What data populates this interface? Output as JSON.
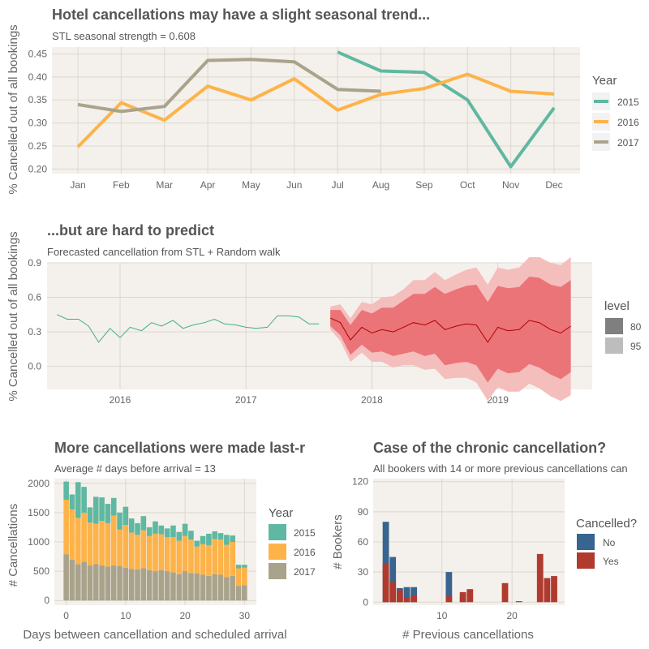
{
  "colors": {
    "panel": "#f4f0eb",
    "grid": "#dcd7d0",
    "y2015": "#5fb8a1",
    "y2016": "#fdb349",
    "y2017": "#a9a38b",
    "forecast_line": "#b00000",
    "band80": "#eb7478",
    "band95": "#f4bebd",
    "history_line": "#3fb27f",
    "no": "#386490",
    "yes": "#b03a2e",
    "legend_level80": "#7f7f7f",
    "legend_level95": "#bdbdbd"
  },
  "chart_data": [
    {
      "type": "line",
      "title": "Hotel cancellations may have a slight seasonal trend...",
      "subtitle": "STL seasonal strength = 0.608",
      "ylabel": "% Cancelled out of all bookings",
      "ylim": [
        0.19,
        0.465
      ],
      "yticks": [
        0.2,
        0.25,
        0.3,
        0.35,
        0.4,
        0.45
      ],
      "ytick_labels": [
        "0.20",
        "0.25",
        "0.30",
        "0.35",
        "0.40",
        "0.45"
      ],
      "categories": [
        "Jan",
        "Feb",
        "Mar",
        "Apr",
        "May",
        "Jun",
        "Jul",
        "Aug",
        "Sep",
        "Oct",
        "Nov",
        "Dec"
      ],
      "legend_title": "Year",
      "series": [
        {
          "name": "2015",
          "values": [
            null,
            null,
            null,
            null,
            null,
            null,
            0.454,
            0.413,
            0.41,
            0.35,
            0.205,
            0.333
          ]
        },
        {
          "name": "2016",
          "values": [
            0.248,
            0.344,
            0.306,
            0.38,
            0.35,
            0.396,
            0.328,
            0.362,
            0.375,
            0.406,
            0.369,
            0.363
          ]
        },
        {
          "name": "2017",
          "values": [
            0.34,
            0.325,
            0.336,
            0.436,
            0.438,
            0.433,
            0.373,
            0.369,
            null,
            null,
            null,
            null
          ]
        }
      ],
      "legend_placement": "right",
      "grid": true
    },
    {
      "type": "line",
      "title": "...but are hard to predict",
      "subtitle": "Forecasted cancellation from STL + Random walk",
      "ylim": [
        -0.2,
        0.9
      ],
      "yticks": [
        0.0,
        0.3,
        0.6,
        0.9
      ],
      "ytick_labels": [
        "0.0",
        "0.3",
        "0.6",
        "0.9"
      ],
      "xlim": [
        2015.42,
        2019.75
      ],
      "xticks": [
        2016,
        2017,
        2018,
        2019
      ],
      "xtick_labels": [
        "2016",
        "2017",
        "2018",
        "2019"
      ],
      "legend_title": "level",
      "legend_items": [
        "80",
        "95"
      ],
      "history": {
        "x": [
          2015.5,
          2015.58,
          2015.67,
          2015.75,
          2015.83,
          2015.92,
          2016.0,
          2016.08,
          2016.17,
          2016.25,
          2016.33,
          2016.42,
          2016.5,
          2016.58,
          2016.67,
          2016.75,
          2016.83,
          2016.92,
          2017.0,
          2017.08,
          2017.17,
          2017.25,
          2017.33,
          2017.42,
          2017.5,
          2017.58
        ],
        "y": [
          0.45,
          0.41,
          0.41,
          0.35,
          0.21,
          0.33,
          0.25,
          0.34,
          0.31,
          0.38,
          0.35,
          0.4,
          0.33,
          0.36,
          0.38,
          0.41,
          0.37,
          0.36,
          0.34,
          0.33,
          0.34,
          0.44,
          0.44,
          0.43,
          0.37,
          0.37
        ]
      },
      "forecast": {
        "x": [
          2017.67,
          2017.75,
          2017.83,
          2017.92,
          2018.0,
          2018.08,
          2018.17,
          2018.25,
          2018.33,
          2018.42,
          2018.5,
          2018.58,
          2018.67,
          2018.75,
          2018.83,
          2018.92,
          2019.0,
          2019.08,
          2019.17,
          2019.25,
          2019.33,
          2019.42,
          2019.5,
          2019.58
        ],
        "mean": [
          0.42,
          0.38,
          0.23,
          0.34,
          0.29,
          0.32,
          0.3,
          0.34,
          0.38,
          0.36,
          0.4,
          0.32,
          0.35,
          0.37,
          0.36,
          0.21,
          0.34,
          0.31,
          0.32,
          0.4,
          0.38,
          0.32,
          0.29,
          0.35
        ],
        "lo80": [
          0.35,
          0.27,
          0.1,
          0.19,
          0.12,
          0.13,
          0.09,
          0.11,
          0.13,
          0.09,
          0.11,
          0.01,
          0.03,
          0.04,
          0.01,
          -0.14,
          -0.02,
          -0.06,
          -0.05,
          0.02,
          -0.01,
          -0.07,
          -0.11,
          -0.05
        ],
        "hi80": [
          0.49,
          0.49,
          0.36,
          0.49,
          0.46,
          0.51,
          0.51,
          0.57,
          0.63,
          0.63,
          0.69,
          0.63,
          0.67,
          0.7,
          0.71,
          0.56,
          0.7,
          0.68,
          0.69,
          0.78,
          0.77,
          0.71,
          0.69,
          0.75
        ],
        "lo95": [
          0.32,
          0.22,
          0.04,
          0.12,
          0.04,
          0.04,
          -0.01,
          0.01,
          0.01,
          -0.03,
          -0.02,
          -0.11,
          -0.1,
          -0.1,
          -0.14,
          -0.3,
          -0.18,
          -0.22,
          -0.22,
          -0.15,
          -0.19,
          -0.26,
          -0.3,
          -0.25
        ],
        "hi95": [
          0.52,
          0.54,
          0.42,
          0.56,
          0.54,
          0.6,
          0.61,
          0.67,
          0.75,
          0.75,
          0.82,
          0.75,
          0.8,
          0.84,
          0.86,
          0.71,
          0.86,
          0.84,
          0.86,
          0.95,
          0.95,
          0.9,
          0.88,
          0.95
        ]
      },
      "grid": true
    },
    {
      "type": "bar",
      "title": "More cancellations were made last-r",
      "subtitle": "Average # days before arrival = 13",
      "xlabel": "Days between cancellation and scheduled arrival",
      "ylabel": "# Cancellations",
      "ylim": [
        -80,
        2080
      ],
      "xlim": [
        -2,
        32
      ],
      "yticks": [
        0,
        500,
        1000,
        1500,
        2000
      ],
      "ytick_labels": [
        "0",
        "500",
        "1000",
        "1500",
        "2000"
      ],
      "xticks": [
        0,
        10,
        20,
        30
      ],
      "xtick_labels": [
        "0",
        "10",
        "20",
        "30"
      ],
      "legend_title": "Year",
      "categories": [
        0,
        1,
        2,
        3,
        4,
        5,
        6,
        7,
        8,
        9,
        10,
        11,
        12,
        13,
        14,
        15,
        16,
        17,
        18,
        19,
        20,
        21,
        22,
        23,
        24,
        25,
        26,
        27,
        28,
        29,
        30
      ],
      "series": [
        {
          "name": "2017",
          "values": [
            790,
            700,
            620,
            660,
            600,
            620,
            600,
            580,
            600,
            590,
            560,
            540,
            530,
            550,
            520,
            500,
            520,
            500,
            480,
            450,
            500,
            470,
            460,
            440,
            420,
            450,
            440,
            400,
            420,
            250,
            260
          ]
        },
        {
          "name": "2016",
          "values": [
            930,
            850,
            790,
            840,
            730,
            690,
            760,
            740,
            850,
            620,
            730,
            620,
            590,
            650,
            580,
            640,
            610,
            580,
            600,
            570,
            600,
            570,
            460,
            520,
            520,
            600,
            600,
            550,
            580,
            300,
            300
          ]
        },
        {
          "name": "2015",
          "values": [
            310,
            260,
            610,
            440,
            260,
            460,
            400,
            330,
            300,
            290,
            310,
            240,
            200,
            240,
            150,
            210,
            150,
            150,
            200,
            150,
            210,
            150,
            100,
            140,
            200,
            130,
            110,
            170,
            110,
            60,
            50
          ]
        }
      ],
      "legend_placement": "right",
      "grid": true
    },
    {
      "type": "bar",
      "title": "Case of the chronic cancellation?",
      "subtitle": "All bookers with 14 or more previous cancellations can",
      "xlabel": "# Previous cancellations",
      "ylabel": "# Bookers",
      "ylim": [
        -3,
        123
      ],
      "xlim": [
        0.2,
        27.5
      ],
      "yticks": [
        0,
        30,
        60,
        90,
        120
      ],
      "ytick_labels": [
        "0",
        "30",
        "60",
        "90",
        "120"
      ],
      "xticks": [
        10,
        20
      ],
      "xtick_labels": [
        "10",
        "20"
      ],
      "legend_title": "Cancelled?",
      "categories": [
        2,
        3,
        4,
        5,
        6,
        11,
        13,
        14,
        19,
        21,
        24,
        25,
        26
      ],
      "series": [
        {
          "name": "No",
          "values": [
            80,
            45,
            14,
            15,
            15,
            30,
            5,
            0,
            0,
            0,
            0,
            0,
            0
          ]
        },
        {
          "name": "Yes",
          "values": [
            38,
            20,
            12,
            5,
            7,
            6,
            10,
            13,
            19,
            1,
            48,
            24,
            26
          ]
        }
      ],
      "legend_placement": "right",
      "grid": true
    }
  ]
}
